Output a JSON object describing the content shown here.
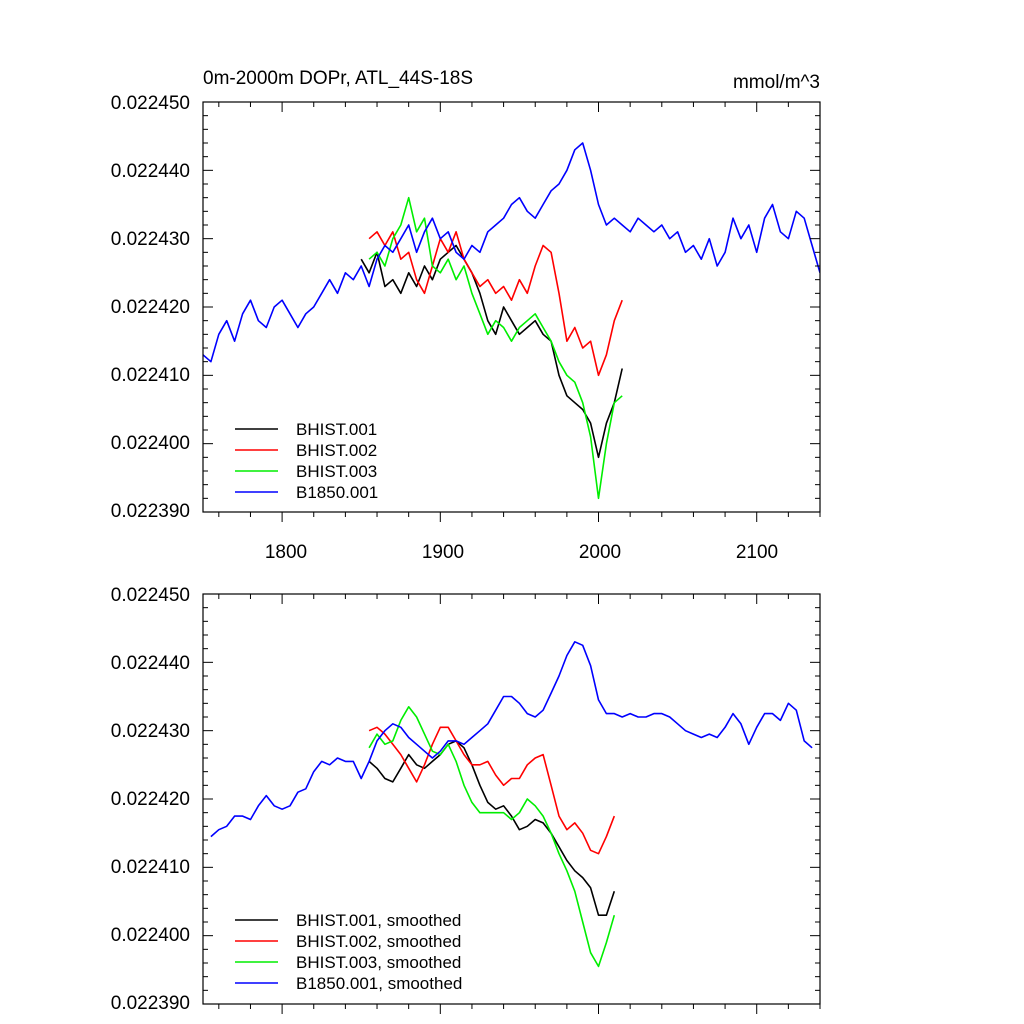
{
  "chart_data": [
    {
      "type": "line",
      "title": "0m-2000m DOPr, ATL_44S-18S",
      "units": "mmol/m^3",
      "xlim": [
        1750,
        2140
      ],
      "ylim": [
        0.02239,
        0.02245
      ],
      "x_ticks": [
        1800,
        1900,
        2000,
        2100
      ],
      "x_tick_labels": [
        "1800",
        "1900",
        "2000",
        "2100"
      ],
      "y_ticks": [
        0.02239,
        0.0224,
        0.02241,
        0.02242,
        0.02243,
        0.02244,
        0.02245
      ],
      "y_tick_labels": [
        "0.022390",
        "0.022400",
        "0.022410",
        "0.022420",
        "0.022430",
        "0.022440",
        "0.022450"
      ],
      "legend_position": "bottom-left",
      "series": [
        {
          "name": "BHIST.001",
          "color": "#000000",
          "x": [
            1850,
            1855,
            1860,
            1865,
            1870,
            1875,
            1880,
            1885,
            1890,
            1895,
            1900,
            1905,
            1910,
            1915,
            1920,
            1925,
            1930,
            1935,
            1940,
            1945,
            1950,
            1955,
            1960,
            1965,
            1970,
            1975,
            1980,
            1985,
            1990,
            1995,
            2000,
            2005,
            2010,
            2015
          ],
          "y": [
            0.022427,
            0.022425,
            0.022428,
            0.022423,
            0.022424,
            0.022422,
            0.022425,
            0.022423,
            0.022426,
            0.022424,
            0.022427,
            0.022428,
            0.022429,
            0.022427,
            0.022425,
            0.022422,
            0.022418,
            0.022416,
            0.02242,
            0.022418,
            0.022416,
            0.022417,
            0.022418,
            0.022416,
            0.022415,
            0.02241,
            0.022407,
            0.022406,
            0.022405,
            0.022403,
            0.022398,
            0.022403,
            0.022406,
            0.022411
          ]
        },
        {
          "name": "BHIST.002",
          "color": "#ff0000",
          "x": [
            1855,
            1860,
            1865,
            1870,
            1875,
            1880,
            1885,
            1890,
            1895,
            1900,
            1905,
            1910,
            1915,
            1920,
            1925,
            1930,
            1935,
            1940,
            1945,
            1950,
            1955,
            1960,
            1965,
            1970,
            1975,
            1980,
            1985,
            1990,
            1995,
            2000,
            2005,
            2010,
            2015
          ],
          "y": [
            0.02243,
            0.022431,
            0.022429,
            0.022431,
            0.022427,
            0.022428,
            0.022424,
            0.022422,
            0.022426,
            0.02243,
            0.022428,
            0.022431,
            0.022427,
            0.022425,
            0.022423,
            0.022424,
            0.022422,
            0.022423,
            0.022421,
            0.022424,
            0.022422,
            0.022426,
            0.022429,
            0.022428,
            0.022422,
            0.022415,
            0.022417,
            0.022414,
            0.022415,
            0.02241,
            0.022413,
            0.022418,
            0.022421
          ]
        },
        {
          "name": "BHIST.003",
          "color": "#00ee00",
          "x": [
            1855,
            1860,
            1865,
            1870,
            1875,
            1880,
            1885,
            1890,
            1895,
            1900,
            1905,
            1910,
            1915,
            1920,
            1925,
            1930,
            1935,
            1940,
            1945,
            1950,
            1955,
            1960,
            1965,
            1970,
            1975,
            1980,
            1985,
            1990,
            1995,
            2000,
            2005,
            2010,
            2015
          ],
          "y": [
            0.022427,
            0.022428,
            0.022426,
            0.02243,
            0.022432,
            0.022436,
            0.022431,
            0.022433,
            0.022426,
            0.022425,
            0.022427,
            0.022424,
            0.022426,
            0.022422,
            0.022419,
            0.022416,
            0.022418,
            0.022417,
            0.022415,
            0.022417,
            0.022418,
            0.022419,
            0.022417,
            0.022415,
            0.022412,
            0.02241,
            0.022409,
            0.022406,
            0.022401,
            0.022392,
            0.0224,
            0.022406,
            0.022407
          ]
        },
        {
          "name": "B1850.001",
          "color": "#0000ff",
          "x": [
            1750,
            1755,
            1760,
            1765,
            1770,
            1775,
            1780,
            1785,
            1790,
            1795,
            1800,
            1805,
            1810,
            1815,
            1820,
            1825,
            1830,
            1835,
            1840,
            1845,
            1850,
            1855,
            1860,
            1865,
            1870,
            1875,
            1880,
            1885,
            1890,
            1895,
            1900,
            1905,
            1910,
            1915,
            1920,
            1925,
            1930,
            1935,
            1940,
            1945,
            1950,
            1955,
            1960,
            1965,
            1970,
            1975,
            1980,
            1985,
            1990,
            1995,
            2000,
            2005,
            2010,
            2015,
            2020,
            2025,
            2030,
            2035,
            2040,
            2045,
            2050,
            2055,
            2060,
            2065,
            2070,
            2075,
            2080,
            2085,
            2090,
            2095,
            2100,
            2105,
            2110,
            2115,
            2120,
            2125,
            2130,
            2135,
            2140
          ],
          "y": [
            0.022413,
            0.022412,
            0.022416,
            0.022418,
            0.022415,
            0.022419,
            0.022421,
            0.022418,
            0.022417,
            0.02242,
            0.022421,
            0.022419,
            0.022417,
            0.022419,
            0.02242,
            0.022422,
            0.022424,
            0.022422,
            0.022425,
            0.022424,
            0.022426,
            0.022423,
            0.022427,
            0.022429,
            0.022428,
            0.02243,
            0.022432,
            0.022428,
            0.022431,
            0.022433,
            0.02243,
            0.022431,
            0.022428,
            0.022427,
            0.022429,
            0.022428,
            0.022431,
            0.022432,
            0.022433,
            0.022435,
            0.022436,
            0.022434,
            0.022433,
            0.022435,
            0.022437,
            0.022438,
            0.02244,
            0.022443,
            0.022444,
            0.02244,
            0.022435,
            0.022432,
            0.022433,
            0.022432,
            0.022431,
            0.022433,
            0.022432,
            0.022431,
            0.022432,
            0.02243,
            0.022431,
            0.022428,
            0.022429,
            0.022427,
            0.02243,
            0.022426,
            0.022428,
            0.022433,
            0.02243,
            0.022432,
            0.022428,
            0.022433,
            0.022435,
            0.022431,
            0.02243,
            0.022434,
            0.022433,
            0.022429,
            0.022425
          ]
        }
      ]
    },
    {
      "type": "line",
      "title": "",
      "xlim": [
        1750,
        2140
      ],
      "ylim": [
        0.02239,
        0.02245
      ],
      "x_ticks": [
        1800,
        1900,
        2000,
        2100
      ],
      "y_ticks": [
        0.02239,
        0.0224,
        0.02241,
        0.02242,
        0.02243,
        0.02244,
        0.02245
      ],
      "y_tick_labels": [
        "0.022390",
        "0.022400",
        "0.022410",
        "0.022420",
        "0.022430",
        "0.022440",
        "0.022450"
      ],
      "legend_position": "bottom-left",
      "series": [
        {
          "name": "BHIST.001, smoothed",
          "color": "#000000",
          "x": [
            1855,
            1860,
            1865,
            1870,
            1875,
            1880,
            1885,
            1890,
            1895,
            1900,
            1905,
            1910,
            1915,
            1920,
            1925,
            1930,
            1935,
            1940,
            1945,
            1950,
            1955,
            1960,
            1965,
            1970,
            1975,
            1980,
            1985,
            1990,
            1995,
            2000,
            2005,
            2010
          ],
          "y": [
            0.0224255,
            0.0224245,
            0.022423,
            0.0224225,
            0.0224245,
            0.0224265,
            0.022425,
            0.0224245,
            0.0224255,
            0.0224265,
            0.022428,
            0.0224285,
            0.0224275,
            0.022425,
            0.022422,
            0.0224195,
            0.0224185,
            0.022419,
            0.0224175,
            0.0224155,
            0.022416,
            0.022417,
            0.0224165,
            0.022415,
            0.022413,
            0.022411,
            0.0224095,
            0.0224085,
            0.022407,
            0.022403,
            0.022403,
            0.0224065
          ]
        },
        {
          "name": "BHIST.002, smoothed",
          "color": "#ff0000",
          "x": [
            1855,
            1860,
            1865,
            1870,
            1875,
            1880,
            1885,
            1890,
            1895,
            1900,
            1905,
            1910,
            1915,
            1920,
            1925,
            1930,
            1935,
            1940,
            1945,
            1950,
            1955,
            1960,
            1965,
            1970,
            1975,
            1980,
            1985,
            1990,
            1995,
            2000,
            2005,
            2010
          ],
          "y": [
            0.02243,
            0.0224305,
            0.0224295,
            0.022428,
            0.0224265,
            0.0224245,
            0.0224225,
            0.022425,
            0.022428,
            0.0224305,
            0.0224305,
            0.0224285,
            0.0224265,
            0.022425,
            0.022425,
            0.0224255,
            0.0224235,
            0.022422,
            0.022423,
            0.022423,
            0.022425,
            0.022426,
            0.0224265,
            0.022422,
            0.0224175,
            0.0224155,
            0.0224165,
            0.022415,
            0.0224125,
            0.022412,
            0.0224145,
            0.0224175
          ]
        },
        {
          "name": "BHIST.003, smoothed",
          "color": "#00ee00",
          "x": [
            1855,
            1860,
            1865,
            1870,
            1875,
            1880,
            1885,
            1890,
            1895,
            1900,
            1905,
            1910,
            1915,
            1920,
            1925,
            1930,
            1935,
            1940,
            1945,
            1950,
            1955,
            1960,
            1965,
            1970,
            1975,
            1980,
            1985,
            1990,
            1995,
            2000,
            2005,
            2010
          ],
          "y": [
            0.0224275,
            0.0224295,
            0.022428,
            0.0224285,
            0.0224315,
            0.0224335,
            0.022432,
            0.0224295,
            0.022427,
            0.0224265,
            0.022428,
            0.0224255,
            0.022422,
            0.0224195,
            0.022418,
            0.022418,
            0.022418,
            0.022418,
            0.022417,
            0.022418,
            0.02242,
            0.022419,
            0.0224175,
            0.022415,
            0.022412,
            0.0224095,
            0.0224065,
            0.022402,
            0.0223975,
            0.0223955,
            0.022399,
            0.022403
          ]
        },
        {
          "name": "B1850.001, smoothed",
          "color": "#0000ff",
          "x": [
            1755,
            1760,
            1765,
            1770,
            1775,
            1780,
            1785,
            1790,
            1795,
            1800,
            1805,
            1810,
            1815,
            1820,
            1825,
            1830,
            1835,
            1840,
            1845,
            1850,
            1855,
            1860,
            1865,
            1870,
            1875,
            1880,
            1885,
            1890,
            1895,
            1900,
            1905,
            1910,
            1915,
            1920,
            1925,
            1930,
            1935,
            1940,
            1945,
            1950,
            1955,
            1960,
            1965,
            1970,
            1975,
            1980,
            1985,
            1990,
            1995,
            2000,
            2005,
            2010,
            2015,
            2020,
            2025,
            2030,
            2035,
            2040,
            2045,
            2050,
            2055,
            2060,
            2065,
            2070,
            2075,
            2080,
            2085,
            2090,
            2095,
            2100,
            2105,
            2110,
            2115,
            2120,
            2125,
            2130,
            2135
          ],
          "y": [
            0.0224145,
            0.0224155,
            0.022416,
            0.0224175,
            0.0224175,
            0.022417,
            0.022419,
            0.0224205,
            0.022419,
            0.0224185,
            0.022419,
            0.022421,
            0.0224215,
            0.022424,
            0.0224255,
            0.022425,
            0.022426,
            0.0224255,
            0.0224255,
            0.022423,
            0.0224255,
            0.0224285,
            0.02243,
            0.022431,
            0.0224305,
            0.022429,
            0.022428,
            0.022427,
            0.022426,
            0.022427,
            0.0224285,
            0.0224285,
            0.022428,
            0.022429,
            0.02243,
            0.022431,
            0.022433,
            0.022435,
            0.022435,
            0.022434,
            0.0224325,
            0.022432,
            0.022433,
            0.0224355,
            0.022438,
            0.022441,
            0.022443,
            0.0224425,
            0.0224395,
            0.0224345,
            0.0224325,
            0.0224325,
            0.022432,
            0.0224325,
            0.022432,
            0.022432,
            0.0224325,
            0.0224325,
            0.022432,
            0.022431,
            0.02243,
            0.0224295,
            0.022429,
            0.0224295,
            0.022429,
            0.0224305,
            0.0224325,
            0.022431,
            0.022428,
            0.0224305,
            0.0224325,
            0.0224325,
            0.0224315,
            0.022434,
            0.022433,
            0.0224285,
            0.0224275
          ]
        }
      ]
    }
  ]
}
